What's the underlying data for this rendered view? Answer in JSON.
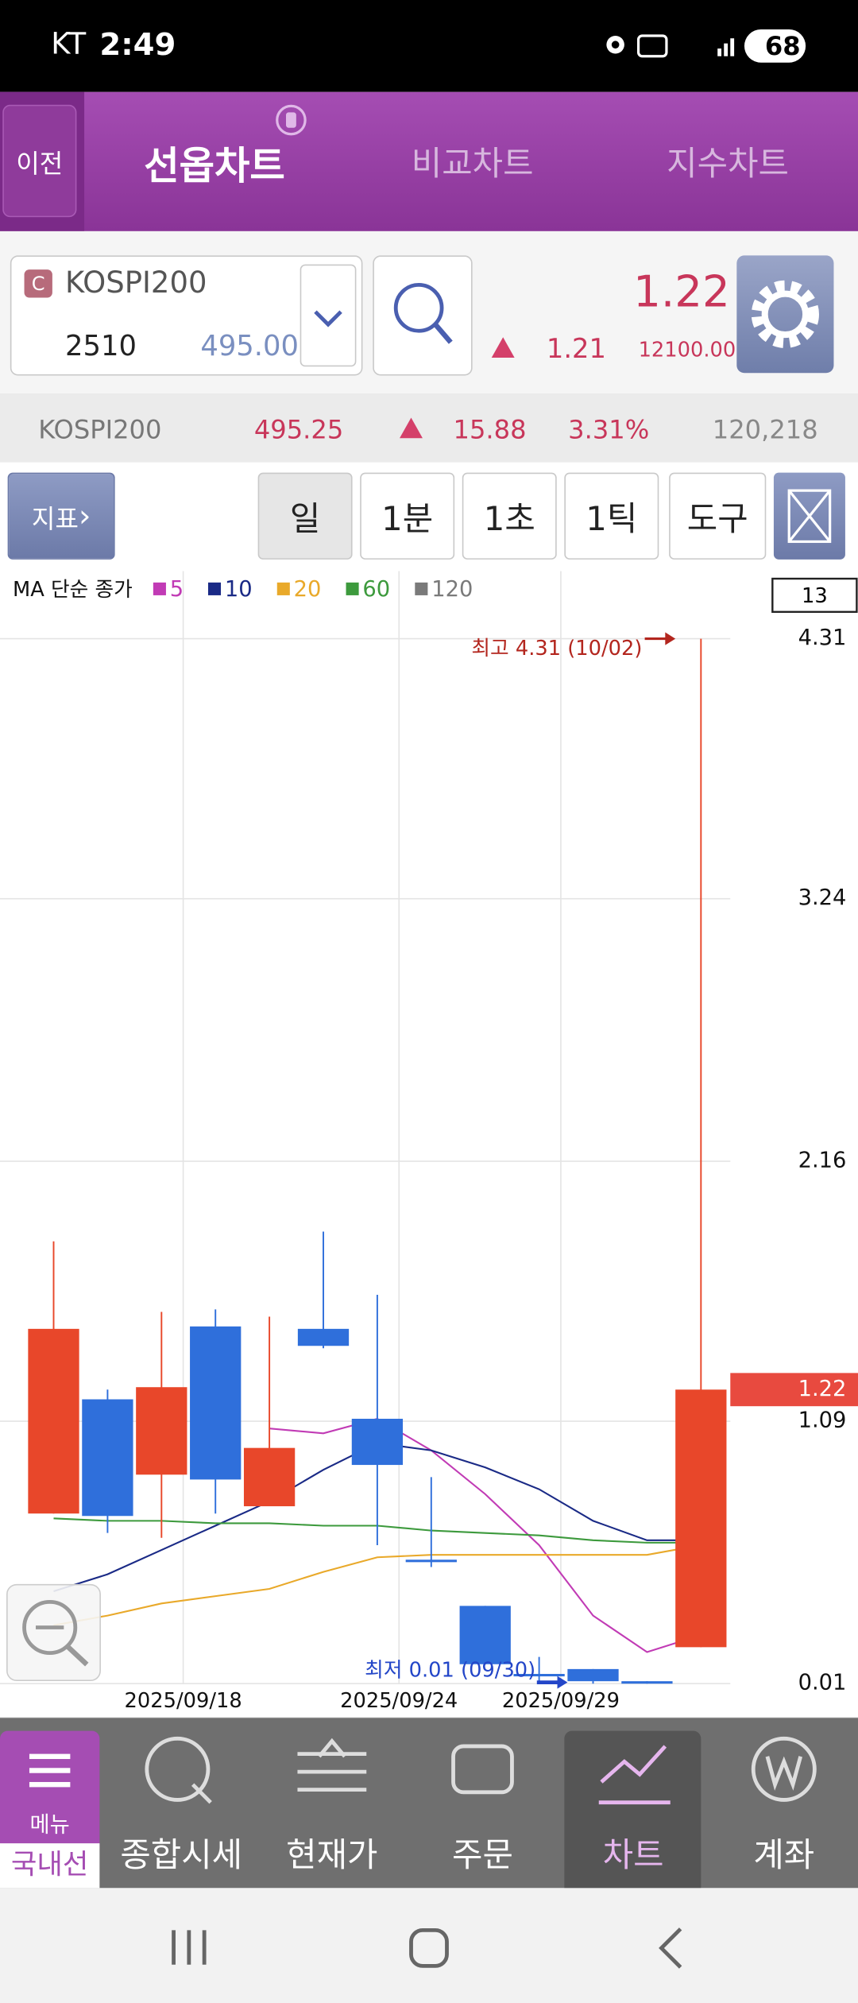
{
  "status_bar": {
    "carrier": "KT",
    "time": "2:49",
    "battery": "68"
  },
  "tabs": {
    "back": "이전",
    "items": [
      "선옵차트",
      "비교차트",
      "지수차트"
    ]
  },
  "quote": {
    "badge": "C",
    "symbol": "KOSPI200",
    "code": "2510",
    "strike": "495.00",
    "price": "1.22",
    "change": "1.21",
    "rate": "12100.00%"
  },
  "index_bar": {
    "name": "KOSPI200",
    "value": "495.25",
    "change": "15.88",
    "rate": "3.31%",
    "volume": "120,218"
  },
  "toolbar": {
    "indicator": "지표",
    "periods": [
      "일",
      "1분",
      "1초",
      "1틱"
    ],
    "tools": "도구"
  },
  "chart_data": {
    "type": "candlestick",
    "legend_title": "MA 단순 종가",
    "categories": [
      null,
      null,
      "2025/09/18",
      null,
      null,
      null,
      "2025/09/24",
      null,
      null,
      "2025/09/29",
      null,
      null,
      null
    ],
    "open": [
      0.71,
      1.18,
      0.87,
      1.48,
      0.74,
      1.47,
      1.1,
      0.52,
      0.33,
      0.05,
      0.07,
      0.02,
      0.16
    ],
    "high": [
      1.83,
      1.22,
      1.54,
      1.55,
      1.52,
      1.87,
      1.61,
      0.86,
      0.33,
      0.12,
      0.07,
      0.02,
      4.31
    ],
    "low": [
      0.71,
      0.63,
      0.61,
      0.71,
      0.74,
      1.39,
      0.58,
      0.49,
      0.09,
      0.02,
      0.01,
      0.01,
      0.16
    ],
    "close": [
      1.47,
      0.7,
      1.23,
      0.85,
      0.98,
      1.4,
      0.91,
      0.51,
      0.09,
      0.04,
      0.02,
      0.01,
      1.22
    ],
    "up_color": "#e8472a",
    "down_color": "#2f6fdb",
    "series": [
      {
        "name": "5",
        "color": "#c13bb5",
        "values": [
          null,
          null,
          null,
          null,
          1.06,
          1.04,
          1.1,
          0.97,
          0.79,
          0.58,
          0.29,
          0.14,
          0.21
        ]
      },
      {
        "name": "10",
        "color": "#1a2a86",
        "values": [
          0.39,
          0.46,
          0.56,
          0.66,
          0.76,
          0.89,
          1.0,
          0.97,
          0.9,
          0.81,
          0.68,
          0.6,
          0.6
        ]
      },
      {
        "name": "20",
        "color": "#e9a92a",
        "values": [
          0.25,
          0.29,
          0.34,
          0.37,
          0.4,
          0.47,
          0.53,
          0.54,
          0.54,
          0.54,
          0.54,
          0.54,
          0.58
        ]
      },
      {
        "name": "60",
        "color": "#3d9a3d",
        "values": [
          0.69,
          0.68,
          0.68,
          0.67,
          0.67,
          0.66,
          0.66,
          0.64,
          0.63,
          0.62,
          0.6,
          0.59,
          0.59
        ]
      },
      {
        "name": "120",
        "color": "#7a7a7a",
        "values": [
          null,
          null,
          null,
          null,
          null,
          null,
          null,
          null,
          null,
          null,
          null,
          null,
          null
        ]
      }
    ],
    "ylim": [
      0.01,
      4.31
    ],
    "yticks": [
      0.01,
      1.09,
      2.16,
      3.24,
      4.31
    ],
    "grid": true,
    "current_price": 1.22,
    "high_label": "최고 4.31 (10/02)",
    "low_label": "최저 0.01 (09/30)",
    "candle_count": "13"
  },
  "bottom_nav": {
    "menu": "메뉴",
    "current": "국내선옵",
    "items": [
      "종합시세",
      "현재가",
      "주문",
      "차트",
      "계좌"
    ]
  }
}
